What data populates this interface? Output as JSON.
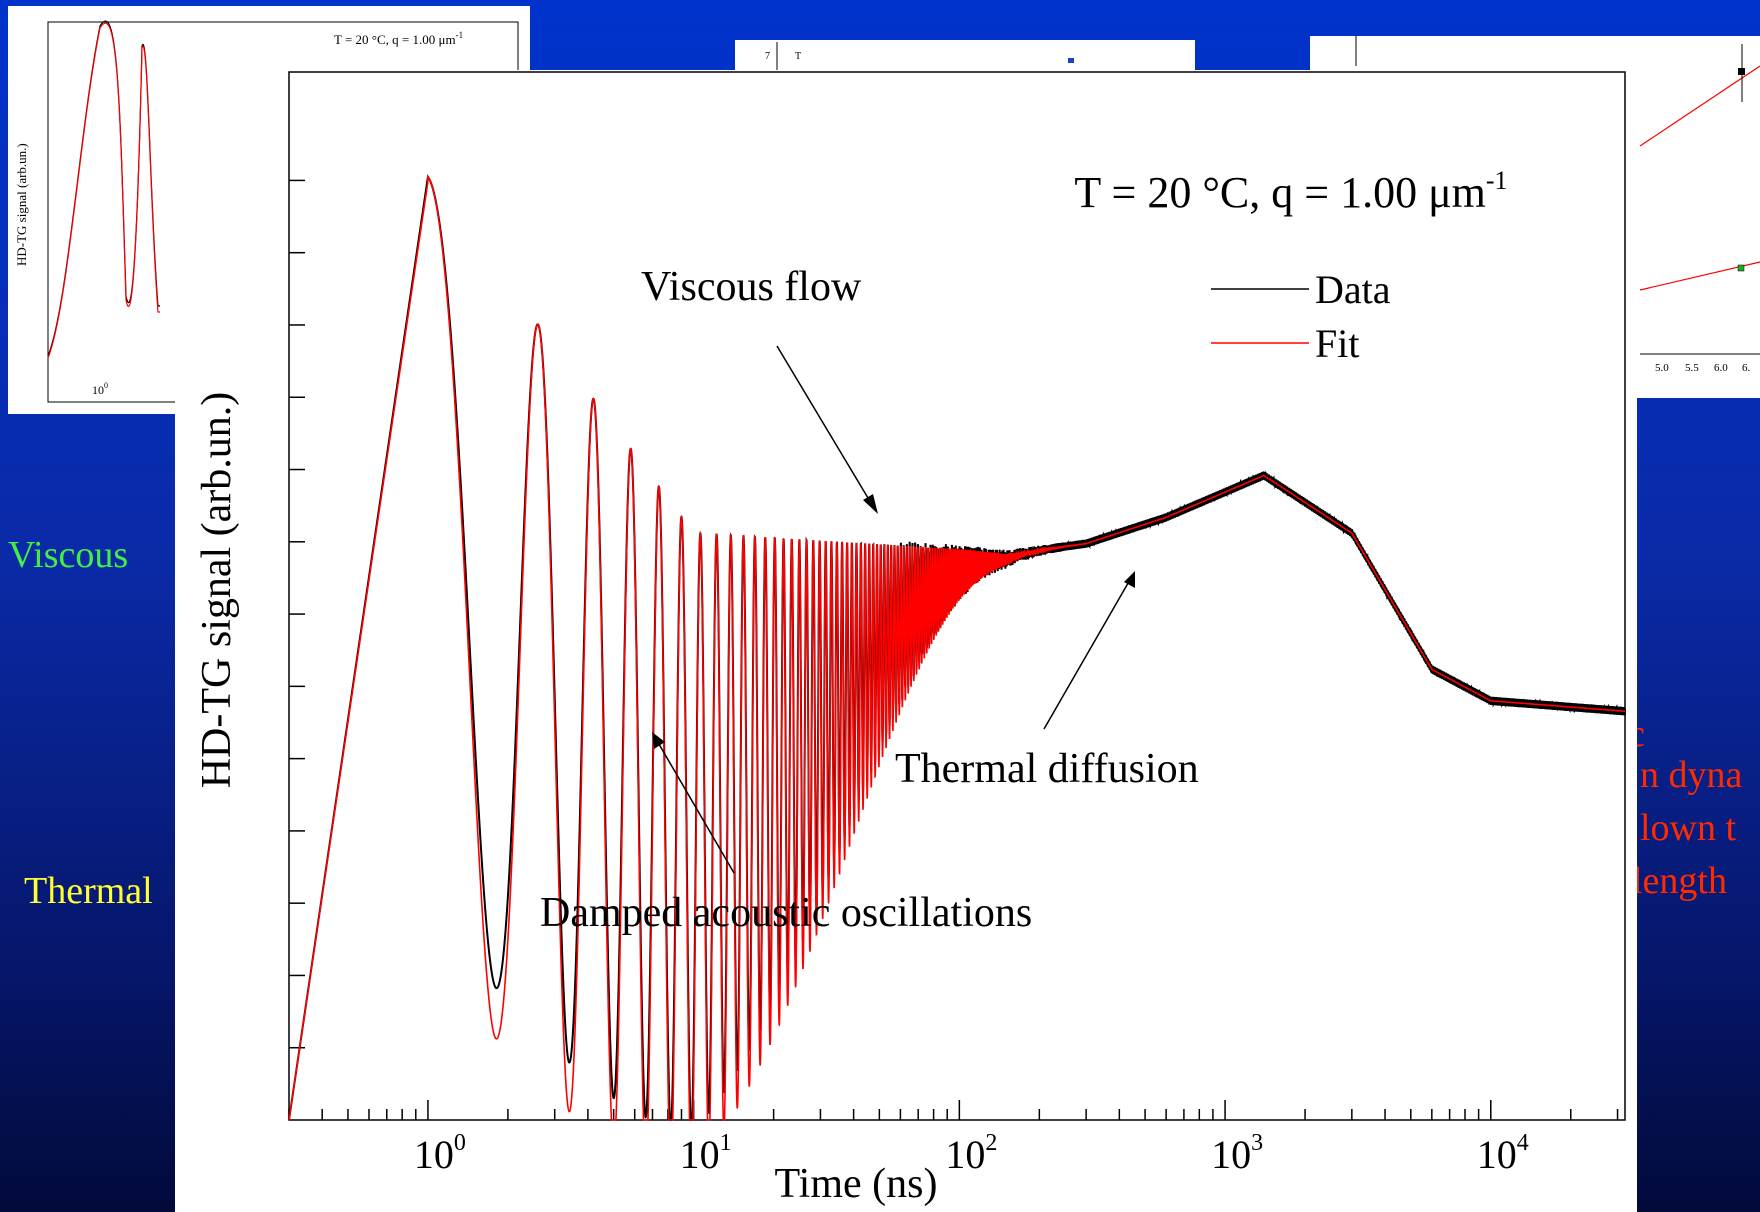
{
  "background": {
    "left_texts": [
      {
        "text": "Viscous",
        "color": "#44ee44"
      },
      {
        "text": "Thermal",
        "color": "#ffff33"
      }
    ],
    "right_texts": [
      {
        "text": "c",
        "color": "#ff2a00"
      },
      {
        "text": "n dyna",
        "color": "#ff2a00"
      },
      {
        "text": "lown t",
        "color": "#ff2a00"
      },
      {
        "text": " length",
        "color": "#ff2a00"
      }
    ]
  },
  "thumb_left": {
    "title": "T = 20 °C, q = 1.00 μm",
    "title_sup": "-1",
    "ylabel": "HD-TG signal (arb.un.)",
    "tick_label": "10",
    "tick_sup": "0"
  },
  "thumb_middle": {
    "tick": "7",
    "t_label": "T"
  },
  "thumb_right": {
    "x_ticks": [
      "5.0",
      "5.5",
      "6.0",
      "6."
    ]
  },
  "main_chart": {
    "annotation_title": "T = 20 °C, q = 1.00 μm",
    "annotation_title_sup": "-1",
    "ylabel": "HD-TG signal (arb.un.)",
    "xlabel": "Time (ns)",
    "labels": {
      "viscous": "Viscous flow",
      "thermal": "Thermal diffusion",
      "acoustic": "Damped acoustic oscillations"
    },
    "legend": [
      "Data",
      "Fit"
    ],
    "x_tick_base": "10",
    "x_tick_exps": [
      "0",
      "1",
      "2",
      "3",
      "4"
    ]
  },
  "chart_data": {
    "type": "line",
    "title": "T = 20 °C, q = 1.00 μm-1",
    "xlabel": "Time (ns)",
    "ylabel": "HD-TG signal (arb.un.)",
    "x_scale": "log",
    "xlim": [
      0.3,
      32000
    ],
    "ylim": [
      0,
      1
    ],
    "legend_position": "top-right",
    "grid": false,
    "series": [
      {
        "name": "Data",
        "color": "#000000"
      },
      {
        "name": "Fit",
        "color": "#ff0000"
      }
    ],
    "x": [
      0.3,
      0.5,
      0.8,
      1.0,
      1.3,
      1.85,
      2.7,
      3.4,
      4.2,
      4.9,
      5.8,
      7,
      10,
      17,
      30,
      60,
      100,
      150,
      300,
      600,
      1400,
      3000,
      6000,
      10000,
      20000,
      32000
    ],
    "envelope_values": {
      "Data": [
        0.0,
        0.4,
        0.83,
        0.92,
        0.85,
        0.14,
        0.75,
        0.12,
        0.73,
        0.2,
        0.67,
        0.26,
        0.62,
        0.57,
        0.4,
        0.5,
        0.55,
        0.54,
        0.56,
        0.58,
        0.62,
        0.57,
        0.43,
        0.4,
        0.39,
        0.39
      ],
      "Fit": [
        0.0,
        0.39,
        0.82,
        0.915,
        0.85,
        0.12,
        0.79,
        0.11,
        0.76,
        0.18,
        0.7,
        0.24,
        0.62,
        0.57,
        0.4,
        0.5,
        0.55,
        0.54,
        0.56,
        0.58,
        0.62,
        0.57,
        0.43,
        0.4,
        0.39,
        0.39
      ]
    },
    "baseline_curve": {
      "x": [
        0.3,
        1,
        10,
        100,
        150,
        300,
        600,
        1400,
        3000,
        6000,
        10000,
        32000
      ],
      "y": [
        0.0,
        0.9,
        0.56,
        0.545,
        0.54,
        0.55,
        0.575,
        0.615,
        0.56,
        0.43,
        0.4,
        0.39
      ]
    }
  }
}
